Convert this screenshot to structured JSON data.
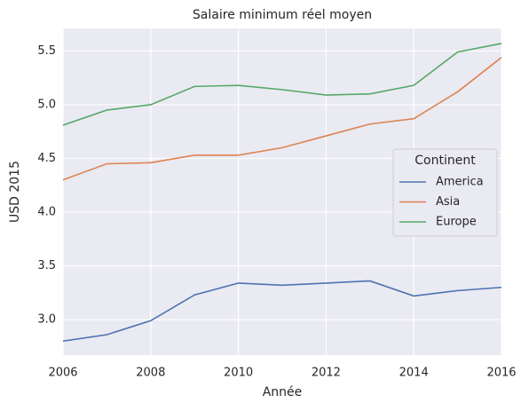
{
  "chart_data": {
    "type": "line",
    "title": "Salaire minimum réel moyen",
    "x_label": "Année",
    "y_label": "USD 2015",
    "x": [
      2006,
      2007,
      2008,
      2009,
      2010,
      2011,
      2012,
      2013,
      2014,
      2015,
      2016
    ],
    "series": [
      {
        "name": "America",
        "color": "#4c72b0",
        "values": [
          2.8,
          2.86,
          2.99,
          3.23,
          3.34,
          3.32,
          3.34,
          3.36,
          3.22,
          3.27,
          3.3
        ]
      },
      {
        "name": "Asia",
        "color": "#dd8452",
        "values": [
          4.3,
          4.45,
          4.46,
          4.53,
          4.53,
          4.6,
          4.71,
          4.82,
          4.87,
          5.12,
          5.44
        ]
      },
      {
        "name": "Europe",
        "color": "#55a868",
        "values": [
          4.81,
          4.95,
          5.0,
          5.17,
          5.18,
          5.14,
          5.09,
          5.1,
          5.18,
          5.49,
          5.57
        ]
      }
    ],
    "legend_title": "Continent",
    "legend_position": "right",
    "xlim": [
      2006,
      2016
    ],
    "xticks": [
      2006,
      2008,
      2010,
      2012,
      2014,
      2016
    ],
    "ylim": [
      2.67,
      5.71
    ],
    "yticks": [
      {
        "value": 3,
        "label": "3.0"
      },
      3.5,
      {
        "value": 4,
        "label": "4.0"
      },
      4.5,
      {
        "value": 5,
        "label": "5.0"
      },
      5.5
    ],
    "grid": true
  }
}
